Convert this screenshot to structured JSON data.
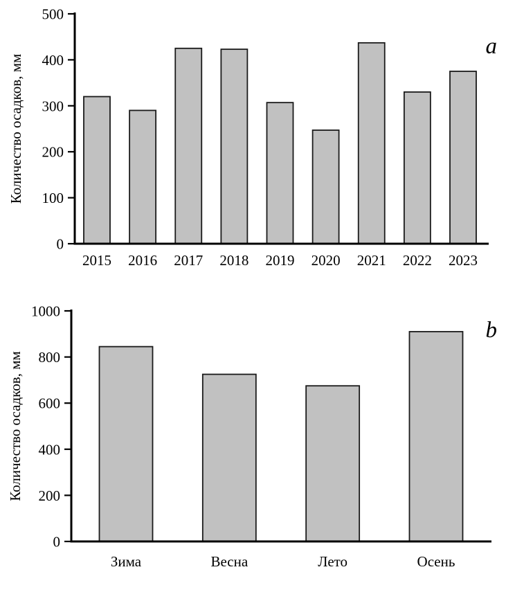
{
  "figure": {
    "description": "Two stacked single-series bar charts of precipitation amount (mm)"
  },
  "chart_data": [
    {
      "type": "bar",
      "panel_label": "a",
      "title": "",
      "xlabel": "",
      "ylabel": "Количество осадков, мм",
      "categories": [
        "2015",
        "2016",
        "2017",
        "2018",
        "2019",
        "2020",
        "2021",
        "2022",
        "2023"
      ],
      "values": [
        320,
        290,
        425,
        423,
        307,
        247,
        437,
        330,
        375
      ],
      "ylim": [
        0,
        500
      ],
      "yticks": [
        0,
        100,
        200,
        300,
        400,
        500
      ],
      "grid": false,
      "legend": "none",
      "bar_fill": "#c1c1c1",
      "bar_stroke": "#1a1a1a",
      "axis_color": "#000000",
      "text_color": "#000000"
    },
    {
      "type": "bar",
      "panel_label": "b",
      "title": "",
      "xlabel": "",
      "ylabel": "Количество осадков, мм",
      "categories": [
        "Зима",
        "Весна",
        "Лето",
        "Осень"
      ],
      "values": [
        845,
        725,
        675,
        910
      ],
      "ylim": [
        0,
        1000
      ],
      "yticks": [
        0,
        200,
        400,
        600,
        800,
        1000
      ],
      "grid": false,
      "legend": "none",
      "bar_fill": "#c1c1c1",
      "bar_stroke": "#1a1a1a",
      "axis_color": "#000000",
      "text_color": "#000000"
    }
  ]
}
